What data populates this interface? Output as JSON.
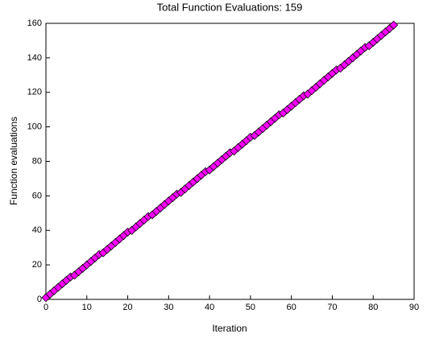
{
  "chart_data": {
    "type": "line",
    "title": "Total Function Evaluations: 159",
    "x_label": "Iteration",
    "y_label": "Function evaluations",
    "x": [
      0,
      1,
      2,
      3,
      4,
      5,
      6,
      7,
      8,
      9,
      10,
      11,
      12,
      13,
      14,
      15,
      16,
      17,
      18,
      19,
      20,
      21,
      22,
      23,
      24,
      25,
      26,
      27,
      28,
      29,
      30,
      31,
      32,
      33,
      34,
      35,
      36,
      37,
      38,
      39,
      40,
      41,
      42,
      43,
      44,
      45,
      46,
      47,
      48,
      49,
      50,
      51,
      52,
      53,
      54,
      55,
      56,
      57,
      58,
      59,
      60,
      61,
      62,
      63,
      64,
      65,
      66,
      67,
      68,
      69,
      70,
      71,
      72,
      73,
      74,
      75,
      76,
      77,
      78,
      79,
      80,
      81,
      82,
      83,
      84,
      85
    ],
    "series": [
      {
        "color": "#ff00ff",
        "values": [
          1,
          3,
          5,
          7,
          9,
          11,
          13,
          14,
          16,
          18,
          20,
          22,
          24,
          26,
          27,
          29,
          31,
          33,
          35,
          37,
          39,
          40,
          42,
          44,
          46,
          48,
          49,
          51,
          53,
          55,
          57,
          59,
          61,
          62,
          64,
          66,
          68,
          70,
          72,
          74,
          75,
          77,
          79,
          81,
          83,
          85,
          86,
          88,
          90,
          92,
          94,
          95,
          97,
          99,
          101,
          103,
          105,
          107,
          108,
          110,
          112,
          114,
          116,
          118,
          119,
          121,
          123,
          125,
          127,
          129,
          131,
          133,
          134,
          136,
          138,
          140,
          142,
          144,
          146,
          147,
          149,
          151,
          153,
          155,
          157,
          159
        ]
      }
    ],
    "xlim": [
      0,
      90
    ],
    "xticks": [
      0,
      10,
      20,
      30,
      40,
      50,
      60,
      70,
      80,
      90
    ],
    "ylim": [
      0,
      160
    ],
    "yticks": [
      0,
      20,
      40,
      60,
      80,
      100,
      120,
      140,
      160
    ]
  }
}
